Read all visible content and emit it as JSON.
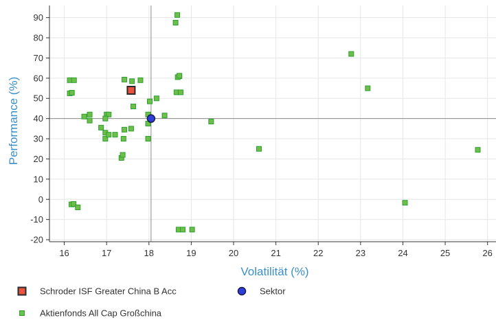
{
  "chart_data": {
    "type": "scatter",
    "xlabel": "Volatilität (%)",
    "ylabel": "Performance (%)",
    "xlim": [
      15.65,
      26.2
    ],
    "ylim": [
      -21,
      96
    ],
    "xticks": [
      16,
      17,
      18,
      19,
      20,
      21,
      22,
      23,
      24,
      25,
      26
    ],
    "yticks": [
      -20,
      -10,
      0,
      10,
      20,
      30,
      40,
      50,
      60,
      70,
      80,
      90
    ],
    "grid": true,
    "reference_lines": {
      "x": 18.05,
      "y": 40
    },
    "legend_position": "bottom-left",
    "series": [
      {
        "name": "Schroder ISF Greater China B Acc",
        "marker": "square-large",
        "color": "#e8523f",
        "edge_color": "#2a2a2a",
        "points": [
          [
            17.58,
            54
          ]
        ]
      },
      {
        "name": "Sektor",
        "marker": "circle",
        "color": "#2e3fd8",
        "edge_color": "#1a1a4a",
        "points": [
          [
            18.05,
            40
          ]
        ]
      },
      {
        "name": "Aktienfonds All Cap  Großchina",
        "marker": "square-small",
        "color": "#6dbf4b",
        "edge_color": "#2f9e2f",
        "points": [
          [
            16.13,
            59
          ],
          [
            16.23,
            59
          ],
          [
            16.13,
            52.5
          ],
          [
            16.18,
            52.8
          ],
          [
            16.47,
            41
          ],
          [
            16.6,
            42
          ],
          [
            16.6,
            39
          ],
          [
            16.87,
            35.5
          ],
          [
            16.97,
            33
          ],
          [
            17.0,
            42
          ],
          [
            17.05,
            42
          ],
          [
            16.97,
            40
          ],
          [
            16.97,
            30
          ],
          [
            17.05,
            32
          ],
          [
            17.2,
            32
          ],
          [
            17.35,
            20.5
          ],
          [
            17.38,
            22
          ],
          [
            17.4,
            30
          ],
          [
            17.42,
            34.5
          ],
          [
            17.42,
            59.3
          ],
          [
            17.6,
            58.5
          ],
          [
            17.58,
            35
          ],
          [
            17.63,
            46
          ],
          [
            17.8,
            59
          ],
          [
            17.98,
            30
          ],
          [
            17.98,
            37.5
          ],
          [
            17.98,
            42
          ],
          [
            18.02,
            48.5
          ],
          [
            18.18,
            50
          ],
          [
            18.37,
            41.5
          ],
          [
            18.63,
            87.5
          ],
          [
            18.67,
            91.3
          ],
          [
            18.65,
            53
          ],
          [
            18.72,
            61
          ],
          [
            18.68,
            60.5
          ],
          [
            18.75,
            53
          ],
          [
            18.72,
            61.2
          ],
          [
            19.47,
            38.5
          ],
          [
            20.6,
            25
          ],
          [
            22.78,
            72
          ],
          [
            23.17,
            55
          ],
          [
            24.05,
            -1.7
          ],
          [
            25.77,
            24.5
          ],
          [
            16.17,
            -2.5
          ],
          [
            16.22,
            -2.3
          ],
          [
            16.32,
            -4
          ],
          [
            18.7,
            -15
          ],
          [
            18.8,
            -15
          ],
          [
            19.02,
            -15
          ]
        ]
      }
    ]
  }
}
